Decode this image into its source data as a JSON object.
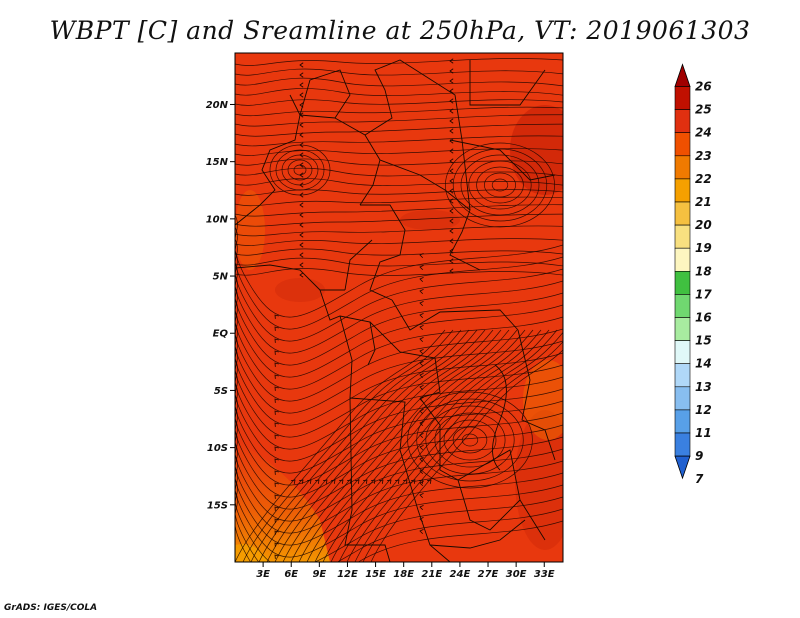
{
  "title": "WBPT [C] and Sreamline at 250hPa, VT: 2019061303",
  "credit": "GrADS: IGES/COLA",
  "map": {
    "lon_range": [
      0,
      35
    ],
    "lat_range": [
      -20,
      24.5
    ],
    "lat_ticks": [
      {
        "value": 20,
        "label": "20N"
      },
      {
        "value": 15,
        "label": "15N"
      },
      {
        "value": 10,
        "label": "10N"
      },
      {
        "value": 5,
        "label": "5N"
      },
      {
        "value": 0,
        "label": "EQ"
      },
      {
        "value": -5,
        "label": "5S"
      },
      {
        "value": -10,
        "label": "10S"
      },
      {
        "value": -15,
        "label": "15S"
      }
    ],
    "lon_ticks": [
      {
        "value": 3,
        "label": "3E"
      },
      {
        "value": 6,
        "label": "6E"
      },
      {
        "value": 9,
        "label": "9E"
      },
      {
        "value": 12,
        "label": "12E"
      },
      {
        "value": 15,
        "label": "15E"
      },
      {
        "value": 18,
        "label": "18E"
      },
      {
        "value": 21,
        "label": "21E"
      },
      {
        "value": 24,
        "label": "24E"
      },
      {
        "value": 27,
        "label": "27E"
      },
      {
        "value": 30,
        "label": "30E"
      },
      {
        "value": 33,
        "label": "33E"
      }
    ],
    "background_color": "#e8380e"
  },
  "colorbar": {
    "labels": [
      "26",
      "25",
      "24",
      "23",
      "22",
      "21",
      "20",
      "19",
      "18",
      "17",
      "16",
      "15",
      "14",
      "13",
      "12",
      "11",
      "9",
      "7"
    ],
    "colors": [
      "#a00000",
      "#c01000",
      "#e03010",
      "#f05000",
      "#f07a00",
      "#f5a000",
      "#f5c040",
      "#f8e080",
      "#fdf6c0",
      "#40c040",
      "#70d870",
      "#a8eca0",
      "#e0f8f8",
      "#b0d8f8",
      "#88bef0",
      "#58a0e8",
      "#3a80e0",
      "#2060d0"
    ]
  }
}
